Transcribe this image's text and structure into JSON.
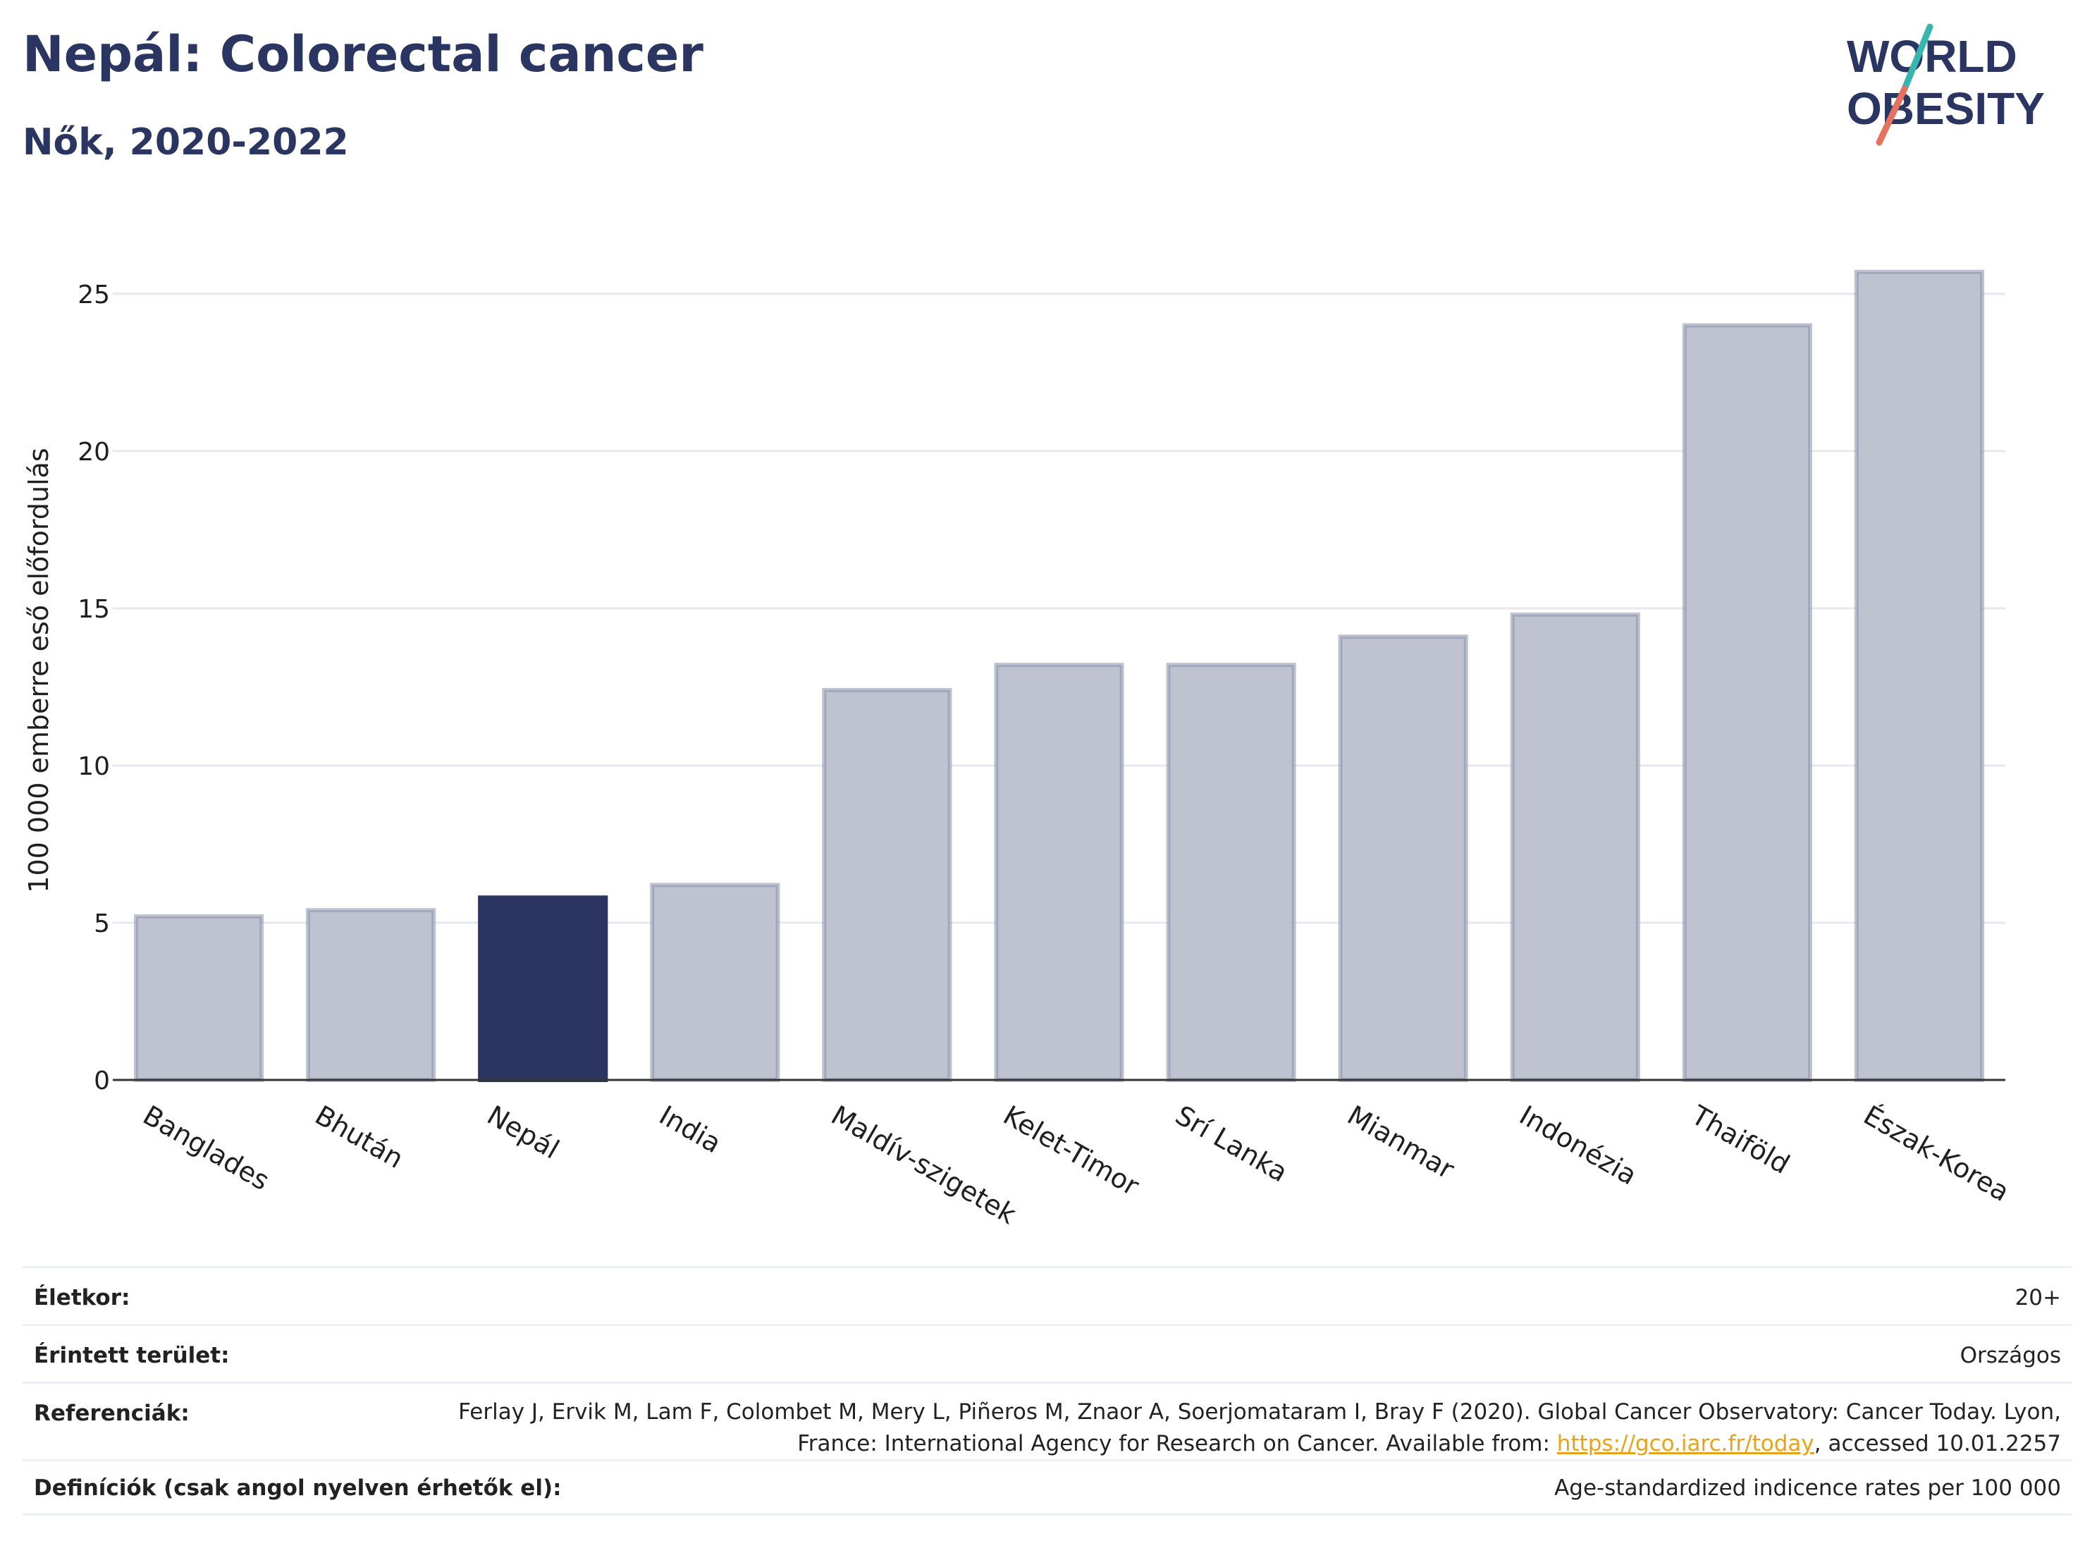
{
  "header": {
    "title": "Nepál: Colorectal cancer",
    "subtitle": "Nők, 2020-2022"
  },
  "logo": {
    "line1": "WORLD",
    "line2": "OBESITY"
  },
  "colors": {
    "title": "#2a3561",
    "highlight_bar": "#2a3561",
    "other_bar": "#bfc3cf",
    "other_bar_border": "#8b92ab",
    "grid": "#e6e8ef",
    "link": "#e8a317",
    "logo_slash_teal": "#39b5b0",
    "logo_slash_coral": "#e5725f"
  },
  "chart_data": {
    "type": "bar",
    "title": "Nepál: Colorectal cancer",
    "subtitle": "Nők, 2020-2022",
    "xlabel": "",
    "ylabel": "100 000 emberre eső előfordulás",
    "categories": [
      "Banglades",
      "Bhután",
      "Nepál",
      "India",
      "Maldív-szigetek",
      "Kelet-Timor",
      "Srí Lanka",
      "Mianmar",
      "Indonézia",
      "Thaiföld",
      "Észak-Korea"
    ],
    "values": [
      5.2,
      5.4,
      5.8,
      6.2,
      12.4,
      13.2,
      13.2,
      14.1,
      14.8,
      24.0,
      25.7
    ],
    "highlight": "Nepál",
    "ylim": [
      0,
      26.5
    ],
    "yticks": [
      0,
      5,
      10,
      15,
      20,
      25
    ],
    "grid": true
  },
  "meta": {
    "age_label": "Életkor:",
    "age_value": "20+",
    "area_label": "Érintett terület:",
    "area_value": "Országos",
    "ref_label": "Referenciák:",
    "ref_text_1": "Ferlay J, Ervik M, Lam F, Colombet M, Mery L, Piñeros M, Znaor A, Soerjomataram I, Bray F (2020). Global Cancer Observatory: Cancer Today. Lyon, France: International Agency for Research on Cancer. Available from: ",
    "ref_link": "https://gco.iarc.fr/today",
    "ref_text_2": ", accessed 10.01.2257",
    "def_label": "Definíciók (csak angol nyelven érhetők el):",
    "def_value": "Age-standardized indicence rates per 100 000"
  }
}
